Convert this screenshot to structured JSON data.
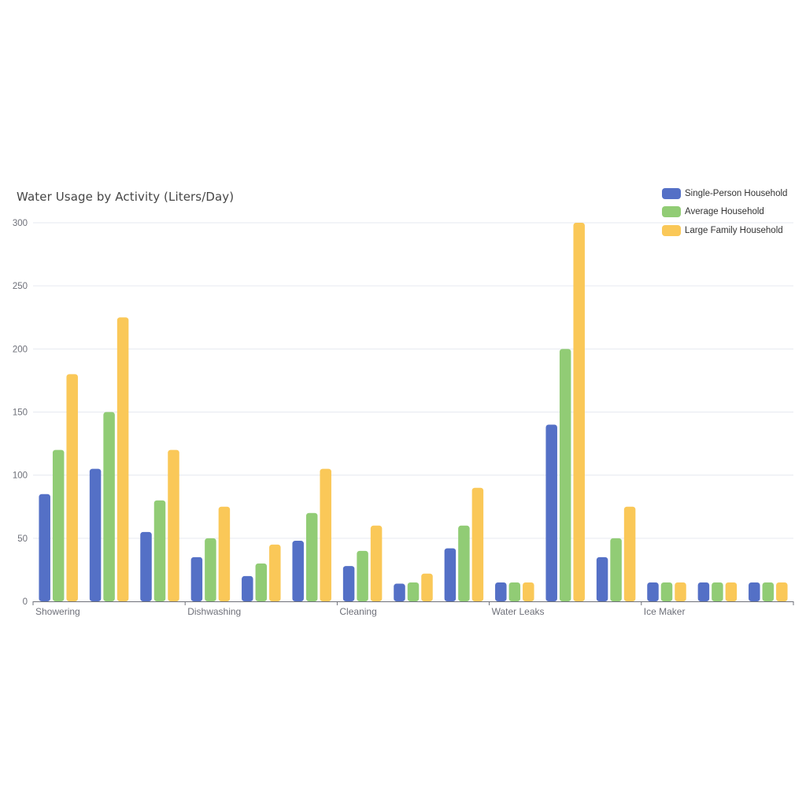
{
  "chart_data": {
    "type": "bar",
    "title": "Water Usage by Activity (Liters/Day)",
    "xlabel": "",
    "ylabel": "",
    "ylim": [
      0,
      300
    ],
    "yticks": [
      0,
      50,
      100,
      150,
      200,
      250,
      300
    ],
    "grid": true,
    "legend_position": "top-right",
    "categories": [
      "Showering",
      "",
      "",
      "Dishwashing",
      "",
      "",
      "Cleaning",
      "",
      "",
      "Water Leaks",
      "",
      "",
      "Ice Maker",
      "",
      ""
    ],
    "visible_x_labels": [
      "Showering",
      "Dishwashing",
      "Cleaning",
      "Water Leaks",
      "Ice Maker"
    ],
    "series": [
      {
        "name": "Single-Person Household",
        "color": "#5470c6",
        "values": [
          85,
          105,
          55,
          35,
          20,
          48,
          28,
          14,
          42,
          15,
          140,
          35,
          15,
          15,
          15
        ]
      },
      {
        "name": "Average Household",
        "color": "#91cc75",
        "values": [
          120,
          150,
          80,
          50,
          30,
          70,
          40,
          15,
          60,
          15,
          200,
          50,
          15,
          15,
          15
        ]
      },
      {
        "name": "Large Family Household",
        "color": "#fac858",
        "values": [
          180,
          225,
          120,
          75,
          45,
          105,
          60,
          22,
          90,
          15,
          300,
          75,
          15,
          15,
          15
        ]
      }
    ]
  }
}
